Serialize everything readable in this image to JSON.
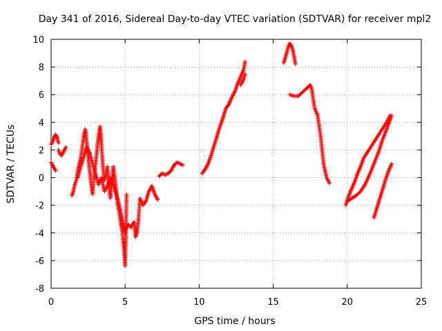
{
  "chart_data": {
    "type": "scatter",
    "title": "Day 341 of 2016, Sidereal Day-to-day VTEC variation (SDTVAR) for receiver mpl2",
    "xlabel": "GPS time / hours",
    "ylabel": "SDTVAR / TECUs",
    "xlim": [
      0,
      25
    ],
    "ylim": [
      -8,
      10
    ],
    "xticks": [
      0,
      5,
      10,
      15,
      20,
      25
    ],
    "xtick_labels": [
      "0",
      "5",
      "10",
      "15",
      "20",
      "25"
    ],
    "yticks": [
      -8,
      -6,
      -4,
      -2,
      0,
      2,
      4,
      6,
      8,
      10
    ],
    "ytick_labels": [
      "-8",
      "-6",
      "-4",
      "-2",
      "0",
      "2",
      "4",
      "6",
      "8",
      "10"
    ],
    "grid": true,
    "marker": "+",
    "color": "#ff0000",
    "series": [
      {
        "name": "segment-1",
        "x": [
          0.0,
          0.1,
          0.2,
          0.25,
          0.3,
          0.35,
          0.4,
          0.5
        ],
        "y": [
          2.4,
          2.6,
          2.9,
          3.0,
          3.1,
          3.0,
          2.9,
          2.5
        ]
      },
      {
        "name": "segment-2",
        "x": [
          0.0,
          0.1,
          0.2,
          0.3
        ],
        "y": [
          1.1,
          0.9,
          0.7,
          0.5
        ]
      },
      {
        "name": "segment-3",
        "x": [
          0.5,
          0.6,
          0.7,
          0.8,
          0.9,
          1.0
        ],
        "y": [
          2.0,
          1.7,
          1.6,
          1.8,
          2.0,
          2.2
        ]
      },
      {
        "name": "segment-4",
        "x": [
          1.4,
          1.5,
          1.6,
          1.7,
          1.8,
          1.9,
          2.0,
          2.1,
          2.2,
          2.3,
          2.35,
          2.4,
          2.5,
          2.6,
          2.7,
          2.8,
          2.9,
          3.0,
          3.1,
          3.2,
          3.3,
          3.35,
          3.4,
          3.5,
          3.6,
          3.7,
          3.8,
          3.9,
          4.0,
          4.1,
          4.2,
          4.3,
          4.4,
          4.5,
          4.6,
          4.7,
          4.8,
          4.9,
          5.0,
          5.1
        ],
        "y": [
          -1.3,
          -1.0,
          -0.5,
          -0.2,
          0.5,
          1.0,
          1.4,
          2.2,
          3.0,
          3.5,
          3.2,
          2.6,
          1.5,
          0.6,
          -0.5,
          -1.2,
          0.2,
          1.0,
          2.0,
          3.0,
          3.7,
          3.2,
          2.3,
          0.8,
          -0.2,
          0.3,
          0.8,
          -0.5,
          -1.5,
          -0.3,
          0.8,
          0.0,
          -1.0,
          -2.0,
          -2.5,
          -3.3,
          -3.8,
          -5.0,
          -6.4,
          -1.2
        ]
      },
      {
        "name": "segment-5",
        "x": [
          1.8,
          2.0,
          2.2,
          2.4,
          2.6,
          2.8,
          3.0,
          3.2,
          3.4,
          3.6,
          3.8,
          4.0,
          4.2,
          4.4,
          4.6,
          4.8,
          5.0
        ],
        "y": [
          0.0,
          0.8,
          1.5,
          2.2,
          1.8,
          1.0,
          0.3,
          -0.5,
          0.0,
          -1.0,
          -0.6,
          0.0,
          -0.5,
          -1.2,
          -2.0,
          -3.0,
          -4.0
        ]
      },
      {
        "name": "segment-6",
        "x": [
          5.0,
          5.2,
          5.4,
          5.6,
          5.7,
          5.8,
          5.9,
          6.0,
          6.2,
          6.4,
          6.6,
          6.8,
          7.0,
          7.2
        ],
        "y": [
          -3.8,
          -3.4,
          -3.6,
          -3.2,
          -4.3,
          -4.0,
          -3.0,
          -1.5,
          -2.0,
          -1.7,
          -1.0,
          -0.6,
          -1.2,
          -1.6
        ]
      },
      {
        "name": "segment-7",
        "x": [
          7.3,
          7.5,
          7.7,
          7.9,
          8.1,
          8.3,
          8.5,
          8.7,
          8.9
        ],
        "y": [
          0.1,
          0.3,
          0.2,
          0.3,
          0.5,
          0.9,
          1.1,
          1.0,
          0.9
        ]
      },
      {
        "name": "segment-8",
        "x": [
          10.2,
          10.4,
          10.6,
          10.8,
          11.0,
          11.2,
          11.4,
          11.6,
          11.8,
          12.0,
          12.2,
          12.4,
          12.6,
          12.8,
          13.0,
          13.1
        ],
        "y": [
          0.3,
          0.6,
          1.0,
          1.6,
          2.3,
          3.0,
          3.7,
          4.3,
          5.0,
          5.3,
          5.8,
          6.2,
          6.8,
          7.3,
          7.8,
          8.4
        ]
      },
      {
        "name": "segment-9",
        "x": [
          12.8,
          13.0,
          13.1
        ],
        "y": [
          6.7,
          7.1,
          7.5
        ]
      },
      {
        "name": "segment-10",
        "x": [
          15.7,
          15.8,
          15.9,
          16.0,
          16.1,
          16.2,
          16.3,
          16.4,
          16.5
        ],
        "y": [
          8.3,
          8.6,
          9.0,
          9.4,
          9.7,
          9.6,
          9.3,
          8.8,
          8.2
        ]
      },
      {
        "name": "segment-11",
        "x": [
          16.1,
          16.4,
          16.7,
          17.0,
          17.3,
          17.5,
          17.6,
          17.8,
          18.0,
          18.2,
          18.4,
          18.6,
          18.8
        ],
        "y": [
          6.0,
          5.9,
          5.9,
          6.2,
          6.5,
          6.7,
          6.4,
          5.0,
          4.5,
          3.0,
          1.0,
          0.0,
          -0.4
        ]
      },
      {
        "name": "segment-12",
        "x": [
          19.9,
          20.1,
          20.3,
          20.5,
          20.7,
          20.9,
          21.1,
          21.4,
          21.7,
          22.0,
          22.3,
          22.6,
          22.9
        ],
        "y": [
          -2.0,
          -1.3,
          -0.8,
          -0.3,
          0.3,
          0.8,
          1.4,
          1.9,
          2.4,
          2.9,
          3.4,
          3.9,
          4.5
        ]
      },
      {
        "name": "segment-13",
        "x": [
          20.0,
          20.3,
          20.6,
          20.9,
          21.2,
          21.5,
          21.8,
          22.1,
          22.4,
          22.7,
          23.0
        ],
        "y": [
          -1.7,
          -1.5,
          -1.3,
          -1.0,
          -0.5,
          0.2,
          1.0,
          1.8,
          2.8,
          3.6,
          4.5
        ]
      },
      {
        "name": "segment-14",
        "x": [
          21.8,
          22.0,
          22.2,
          22.4,
          22.6,
          22.8,
          23.0
        ],
        "y": [
          -2.9,
          -2.2,
          -1.5,
          -0.8,
          -0.1,
          0.5,
          1.0
        ]
      }
    ]
  }
}
